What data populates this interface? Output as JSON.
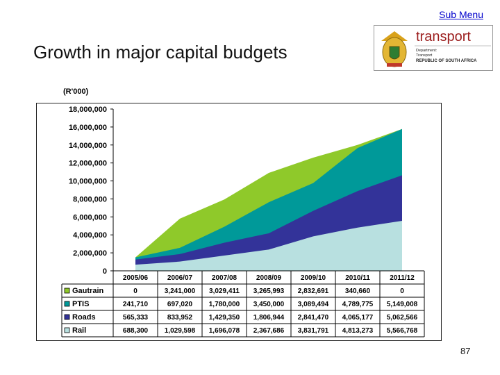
{
  "header": {
    "sub_menu": "Sub Menu",
    "title": "Growth in major capital budgets"
  },
  "logo": {
    "brand": "transport",
    "line1": "Department:",
    "line2": "Transport",
    "line3": "REPUBLIC OF SOUTH AFRICA"
  },
  "footer": {
    "page_number": "87"
  },
  "chart_data": {
    "type": "area",
    "stacked": true,
    "unit_label": "(R'000)",
    "categories": [
      "2005/06",
      "2006/07",
      "2007/08",
      "2008/09",
      "2009/10",
      "2010/11",
      "2011/12"
    ],
    "ylim": [
      0,
      18000000
    ],
    "yticks": [
      0,
      2000000,
      4000000,
      6000000,
      8000000,
      10000000,
      12000000,
      14000000,
      16000000,
      18000000
    ],
    "ytick_labels": [
      "0",
      "2,000,000",
      "4,000,000",
      "6,000,000",
      "8,000,000",
      "10,000,000",
      "12,000,000",
      "14,000,000",
      "16,000,000",
      "18,000,000"
    ],
    "grid": false,
    "legend": "table-below",
    "series": [
      {
        "name": "Gautrain",
        "color": "#8fc92a",
        "values": [
          0,
          3241000,
          3029411,
          3265993,
          2832691,
          340660,
          0
        ],
        "labels": [
          "0",
          "3,241,000",
          "3,029,411",
          "3,265,993",
          "2,832,691",
          "340,660",
          "0"
        ]
      },
      {
        "name": "PTIS",
        "color": "#009999",
        "values": [
          241710,
          697020,
          1780000,
          3450000,
          3089494,
          4789775,
          5149008
        ],
        "labels": [
          "241,710",
          "697,020",
          "1,780,000",
          "3,450,000",
          "3,089,494",
          "4,789,775",
          "5,149,008"
        ]
      },
      {
        "name": "Roads",
        "color": "#333399",
        "values": [
          565333,
          833952,
          1429350,
          1806944,
          2841470,
          4065177,
          5062566
        ],
        "labels": [
          "565,333",
          "833,952",
          "1,429,350",
          "1,806,944",
          "2,841,470",
          "4,065,177",
          "5,062,566"
        ]
      },
      {
        "name": "Rail",
        "color": "#b8e0e0",
        "values": [
          688300,
          1029598,
          1696078,
          2367686,
          3831791,
          4813273,
          5566768
        ],
        "labels": [
          "688,300",
          "1,029,598",
          "1,696,078",
          "2,367,686",
          "3,831,791",
          "4,813,273",
          "5,566,768"
        ]
      }
    ]
  }
}
